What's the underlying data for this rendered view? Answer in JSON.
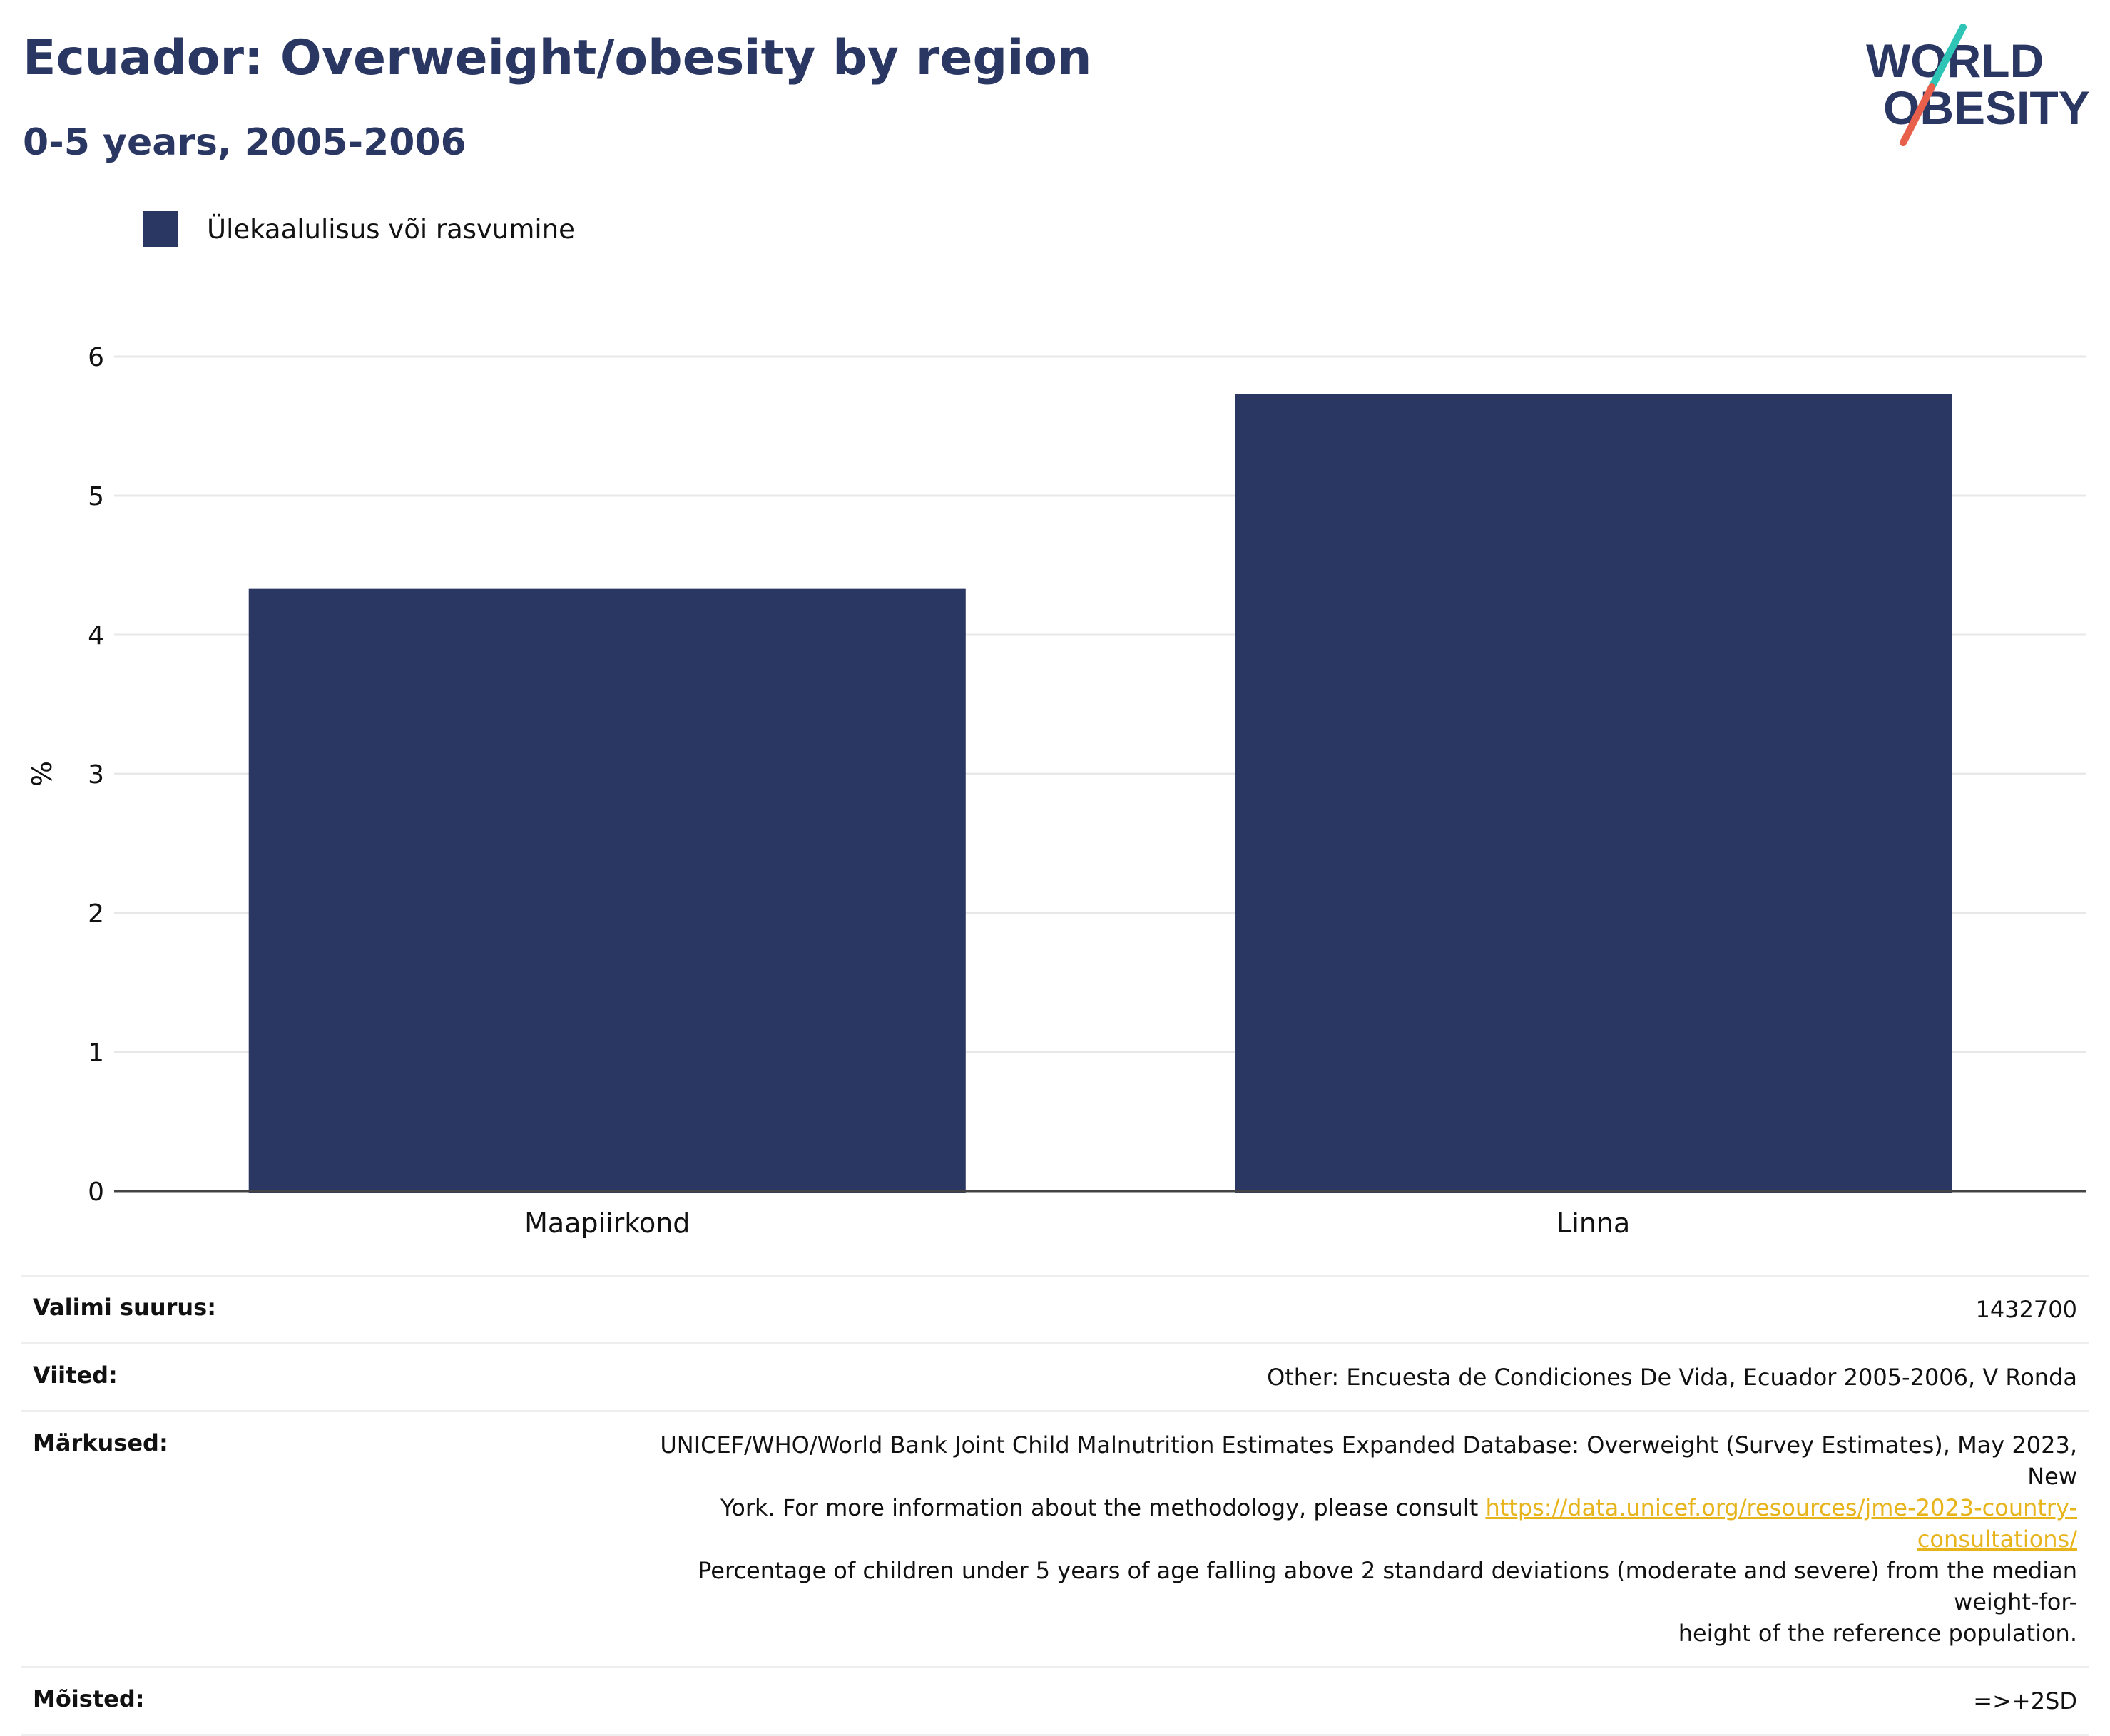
{
  "header": {
    "title": "Ecuador: Overweight/obesity by region",
    "subtitle": "0-5 years, 2005-2006"
  },
  "logo": {
    "text_line1": "WORLD",
    "text_line2": "OBESITY",
    "colors": {
      "text": "#2b3763",
      "slash_top": "#2ec4b6",
      "slash_bottom": "#e8604c"
    }
  },
  "chart_data": {
    "type": "bar",
    "categories": [
      "Maapiirkond",
      "Linna"
    ],
    "series": [
      {
        "name": "Ülekaalulisus või rasvumine",
        "values": [
          4.33,
          5.73
        ],
        "color": "#2b3763"
      }
    ],
    "xlabel": "",
    "ylabel": "%",
    "ylim": [
      0,
      6
    ],
    "yticks": [
      0,
      1,
      2,
      3,
      4,
      5,
      6
    ],
    "grid": true,
    "legend_position": "top-left"
  },
  "info": {
    "sample_label": "Valimi suurus:",
    "sample_value": "1432700",
    "refs_label": "Viited:",
    "refs_value": "Other: Encuesta de Condiciones De Vida, Ecuador 2005-2006, V Ronda",
    "notes_label": "Märkused:",
    "notes_line1": "UNICEF/WHO/World Bank Joint Child Malnutrition Estimates Expanded Database: Overweight (Survey Estimates), May 2023, New",
    "notes_line2_prefix": "York. For more information about the methodology, please consult ",
    "notes_link": "https://data.unicef.org/resources/jme-2023-country-consultations/",
    "notes_line3": "Percentage of children under 5 years of age falling above 2 standard deviations (moderate and severe) from the median weight-for-",
    "notes_line4": "height of the reference population.",
    "defs_label": "Mõisted:",
    "defs_value": "=>+2SD"
  }
}
